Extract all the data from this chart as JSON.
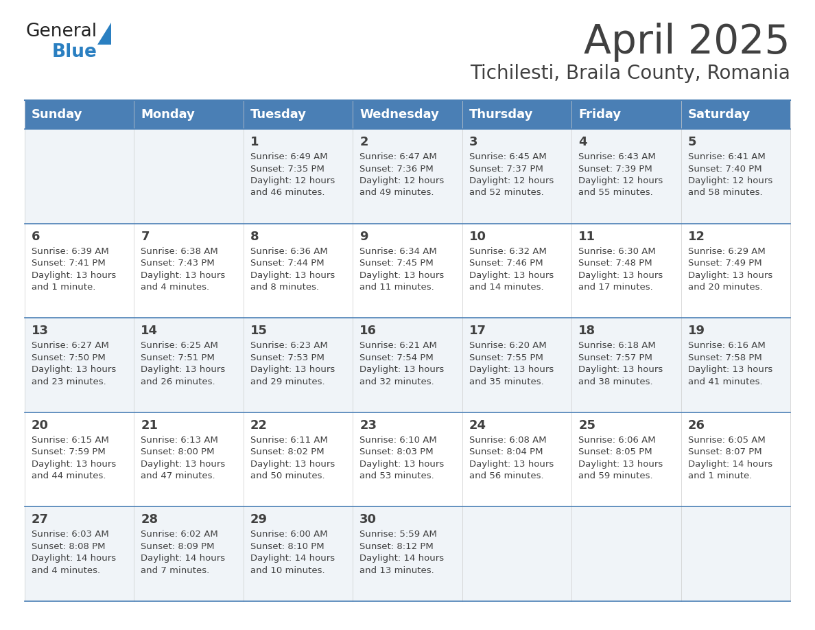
{
  "title": "April 2025",
  "subtitle": "Tichilesti, Braila County, Romania",
  "header_bg_color": "#4a7fb5",
  "header_text_color": "#ffffff",
  "row_bg_even": "#f0f4f8",
  "row_bg_odd": "#ffffff",
  "border_color": "#4a7fb5",
  "text_color": "#404040",
  "days_of_week": [
    "Sunday",
    "Monday",
    "Tuesday",
    "Wednesday",
    "Thursday",
    "Friday",
    "Saturday"
  ],
  "calendar": [
    [
      {
        "day": "",
        "info": ""
      },
      {
        "day": "",
        "info": ""
      },
      {
        "day": "1",
        "info": "Sunrise: 6:49 AM\nSunset: 7:35 PM\nDaylight: 12 hours\nand 46 minutes."
      },
      {
        "day": "2",
        "info": "Sunrise: 6:47 AM\nSunset: 7:36 PM\nDaylight: 12 hours\nand 49 minutes."
      },
      {
        "day": "3",
        "info": "Sunrise: 6:45 AM\nSunset: 7:37 PM\nDaylight: 12 hours\nand 52 minutes."
      },
      {
        "day": "4",
        "info": "Sunrise: 6:43 AM\nSunset: 7:39 PM\nDaylight: 12 hours\nand 55 minutes."
      },
      {
        "day": "5",
        "info": "Sunrise: 6:41 AM\nSunset: 7:40 PM\nDaylight: 12 hours\nand 58 minutes."
      }
    ],
    [
      {
        "day": "6",
        "info": "Sunrise: 6:39 AM\nSunset: 7:41 PM\nDaylight: 13 hours\nand 1 minute."
      },
      {
        "day": "7",
        "info": "Sunrise: 6:38 AM\nSunset: 7:43 PM\nDaylight: 13 hours\nand 4 minutes."
      },
      {
        "day": "8",
        "info": "Sunrise: 6:36 AM\nSunset: 7:44 PM\nDaylight: 13 hours\nand 8 minutes."
      },
      {
        "day": "9",
        "info": "Sunrise: 6:34 AM\nSunset: 7:45 PM\nDaylight: 13 hours\nand 11 minutes."
      },
      {
        "day": "10",
        "info": "Sunrise: 6:32 AM\nSunset: 7:46 PM\nDaylight: 13 hours\nand 14 minutes."
      },
      {
        "day": "11",
        "info": "Sunrise: 6:30 AM\nSunset: 7:48 PM\nDaylight: 13 hours\nand 17 minutes."
      },
      {
        "day": "12",
        "info": "Sunrise: 6:29 AM\nSunset: 7:49 PM\nDaylight: 13 hours\nand 20 minutes."
      }
    ],
    [
      {
        "day": "13",
        "info": "Sunrise: 6:27 AM\nSunset: 7:50 PM\nDaylight: 13 hours\nand 23 minutes."
      },
      {
        "day": "14",
        "info": "Sunrise: 6:25 AM\nSunset: 7:51 PM\nDaylight: 13 hours\nand 26 minutes."
      },
      {
        "day": "15",
        "info": "Sunrise: 6:23 AM\nSunset: 7:53 PM\nDaylight: 13 hours\nand 29 minutes."
      },
      {
        "day": "16",
        "info": "Sunrise: 6:21 AM\nSunset: 7:54 PM\nDaylight: 13 hours\nand 32 minutes."
      },
      {
        "day": "17",
        "info": "Sunrise: 6:20 AM\nSunset: 7:55 PM\nDaylight: 13 hours\nand 35 minutes."
      },
      {
        "day": "18",
        "info": "Sunrise: 6:18 AM\nSunset: 7:57 PM\nDaylight: 13 hours\nand 38 minutes."
      },
      {
        "day": "19",
        "info": "Sunrise: 6:16 AM\nSunset: 7:58 PM\nDaylight: 13 hours\nand 41 minutes."
      }
    ],
    [
      {
        "day": "20",
        "info": "Sunrise: 6:15 AM\nSunset: 7:59 PM\nDaylight: 13 hours\nand 44 minutes."
      },
      {
        "day": "21",
        "info": "Sunrise: 6:13 AM\nSunset: 8:00 PM\nDaylight: 13 hours\nand 47 minutes."
      },
      {
        "day": "22",
        "info": "Sunrise: 6:11 AM\nSunset: 8:02 PM\nDaylight: 13 hours\nand 50 minutes."
      },
      {
        "day": "23",
        "info": "Sunrise: 6:10 AM\nSunset: 8:03 PM\nDaylight: 13 hours\nand 53 minutes."
      },
      {
        "day": "24",
        "info": "Sunrise: 6:08 AM\nSunset: 8:04 PM\nDaylight: 13 hours\nand 56 minutes."
      },
      {
        "day": "25",
        "info": "Sunrise: 6:06 AM\nSunset: 8:05 PM\nDaylight: 13 hours\nand 59 minutes."
      },
      {
        "day": "26",
        "info": "Sunrise: 6:05 AM\nSunset: 8:07 PM\nDaylight: 14 hours\nand 1 minute."
      }
    ],
    [
      {
        "day": "27",
        "info": "Sunrise: 6:03 AM\nSunset: 8:08 PM\nDaylight: 14 hours\nand 4 minutes."
      },
      {
        "day": "28",
        "info": "Sunrise: 6:02 AM\nSunset: 8:09 PM\nDaylight: 14 hours\nand 7 minutes."
      },
      {
        "day": "29",
        "info": "Sunrise: 6:00 AM\nSunset: 8:10 PM\nDaylight: 14 hours\nand 10 minutes."
      },
      {
        "day": "30",
        "info": "Sunrise: 5:59 AM\nSunset: 8:12 PM\nDaylight: 14 hours\nand 13 minutes."
      },
      {
        "day": "",
        "info": ""
      },
      {
        "day": "",
        "info": ""
      },
      {
        "day": "",
        "info": ""
      }
    ]
  ],
  "logo_text1": "General",
  "logo_text2": "Blue",
  "logo_color1": "#222222",
  "logo_color2": "#2a7fc1",
  "title_fontsize": 42,
  "subtitle_fontsize": 20,
  "header_fontsize": 13,
  "day_num_fontsize": 13,
  "info_fontsize": 9.5
}
